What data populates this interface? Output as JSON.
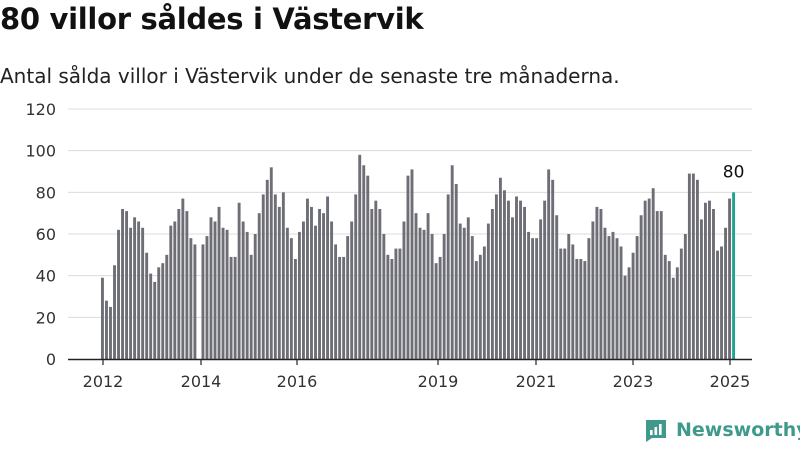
{
  "header": {
    "title": "80 villor såldes i Västervik",
    "subtitle": "Antal sålda villor i Västervik under de senaste tre månaderna."
  },
  "brand": {
    "name": "Newsworthy",
    "color": "#3f9a8c"
  },
  "colors": {
    "bar": "#6e6e76",
    "highlight": "#1fa38e",
    "axis": "#222222",
    "grid": "#dcdcdc"
  },
  "chart_data": {
    "type": "bar",
    "title": "80 villor såldes i Västervik",
    "subtitle": "Antal sålda villor i Västervik under de senaste tre månaderna.",
    "xlabel": "",
    "ylabel": "",
    "ylim": [
      0,
      120
    ],
    "yticks": [
      0,
      20,
      40,
      60,
      80,
      100,
      120
    ],
    "xtick_labels": [
      "2012",
      "2014",
      "2016",
      "2019",
      "2021",
      "2023",
      "2025"
    ],
    "grid": "horizontal",
    "legend": "none",
    "highlight_label": "80",
    "values": [
      39,
      28,
      25,
      45,
      62,
      72,
      71,
      63,
      68,
      66,
      63,
      51,
      41,
      37,
      44,
      46,
      50,
      64,
      66,
      72,
      77,
      71,
      58,
      55,
      0,
      55,
      59,
      68,
      66,
      73,
      63,
      62,
      49,
      49,
      75,
      66,
      61,
      50,
      60,
      70,
      79,
      86,
      92,
      79,
      73,
      80,
      63,
      58,
      48,
      61,
      66,
      77,
      73,
      64,
      72,
      70,
      78,
      66,
      55,
      49,
      49,
      59,
      66,
      79,
      98,
      93,
      88,
      72,
      76,
      72,
      60,
      50,
      48,
      53,
      53,
      66,
      88,
      91,
      70,
      63,
      62,
      70,
      60,
      46,
      49,
      60,
      79,
      93,
      84,
      65,
      63,
      68,
      59,
      47,
      50,
      54,
      65,
      72,
      79,
      87,
      81,
      76,
      68,
      78,
      76,
      73,
      61,
      58,
      58,
      67,
      76,
      91,
      86,
      69,
      53,
      53,
      60,
      55,
      48,
      48,
      47,
      58,
      66,
      73,
      72,
      63,
      59,
      61,
      58,
      54,
      40,
      44,
      51,
      59,
      69,
      76,
      77,
      82,
      71,
      71,
      50,
      47,
      39,
      44,
      53,
      60,
      89,
      89,
      86,
      67,
      75,
      76,
      72,
      52,
      54,
      63,
      77,
      80
    ]
  }
}
